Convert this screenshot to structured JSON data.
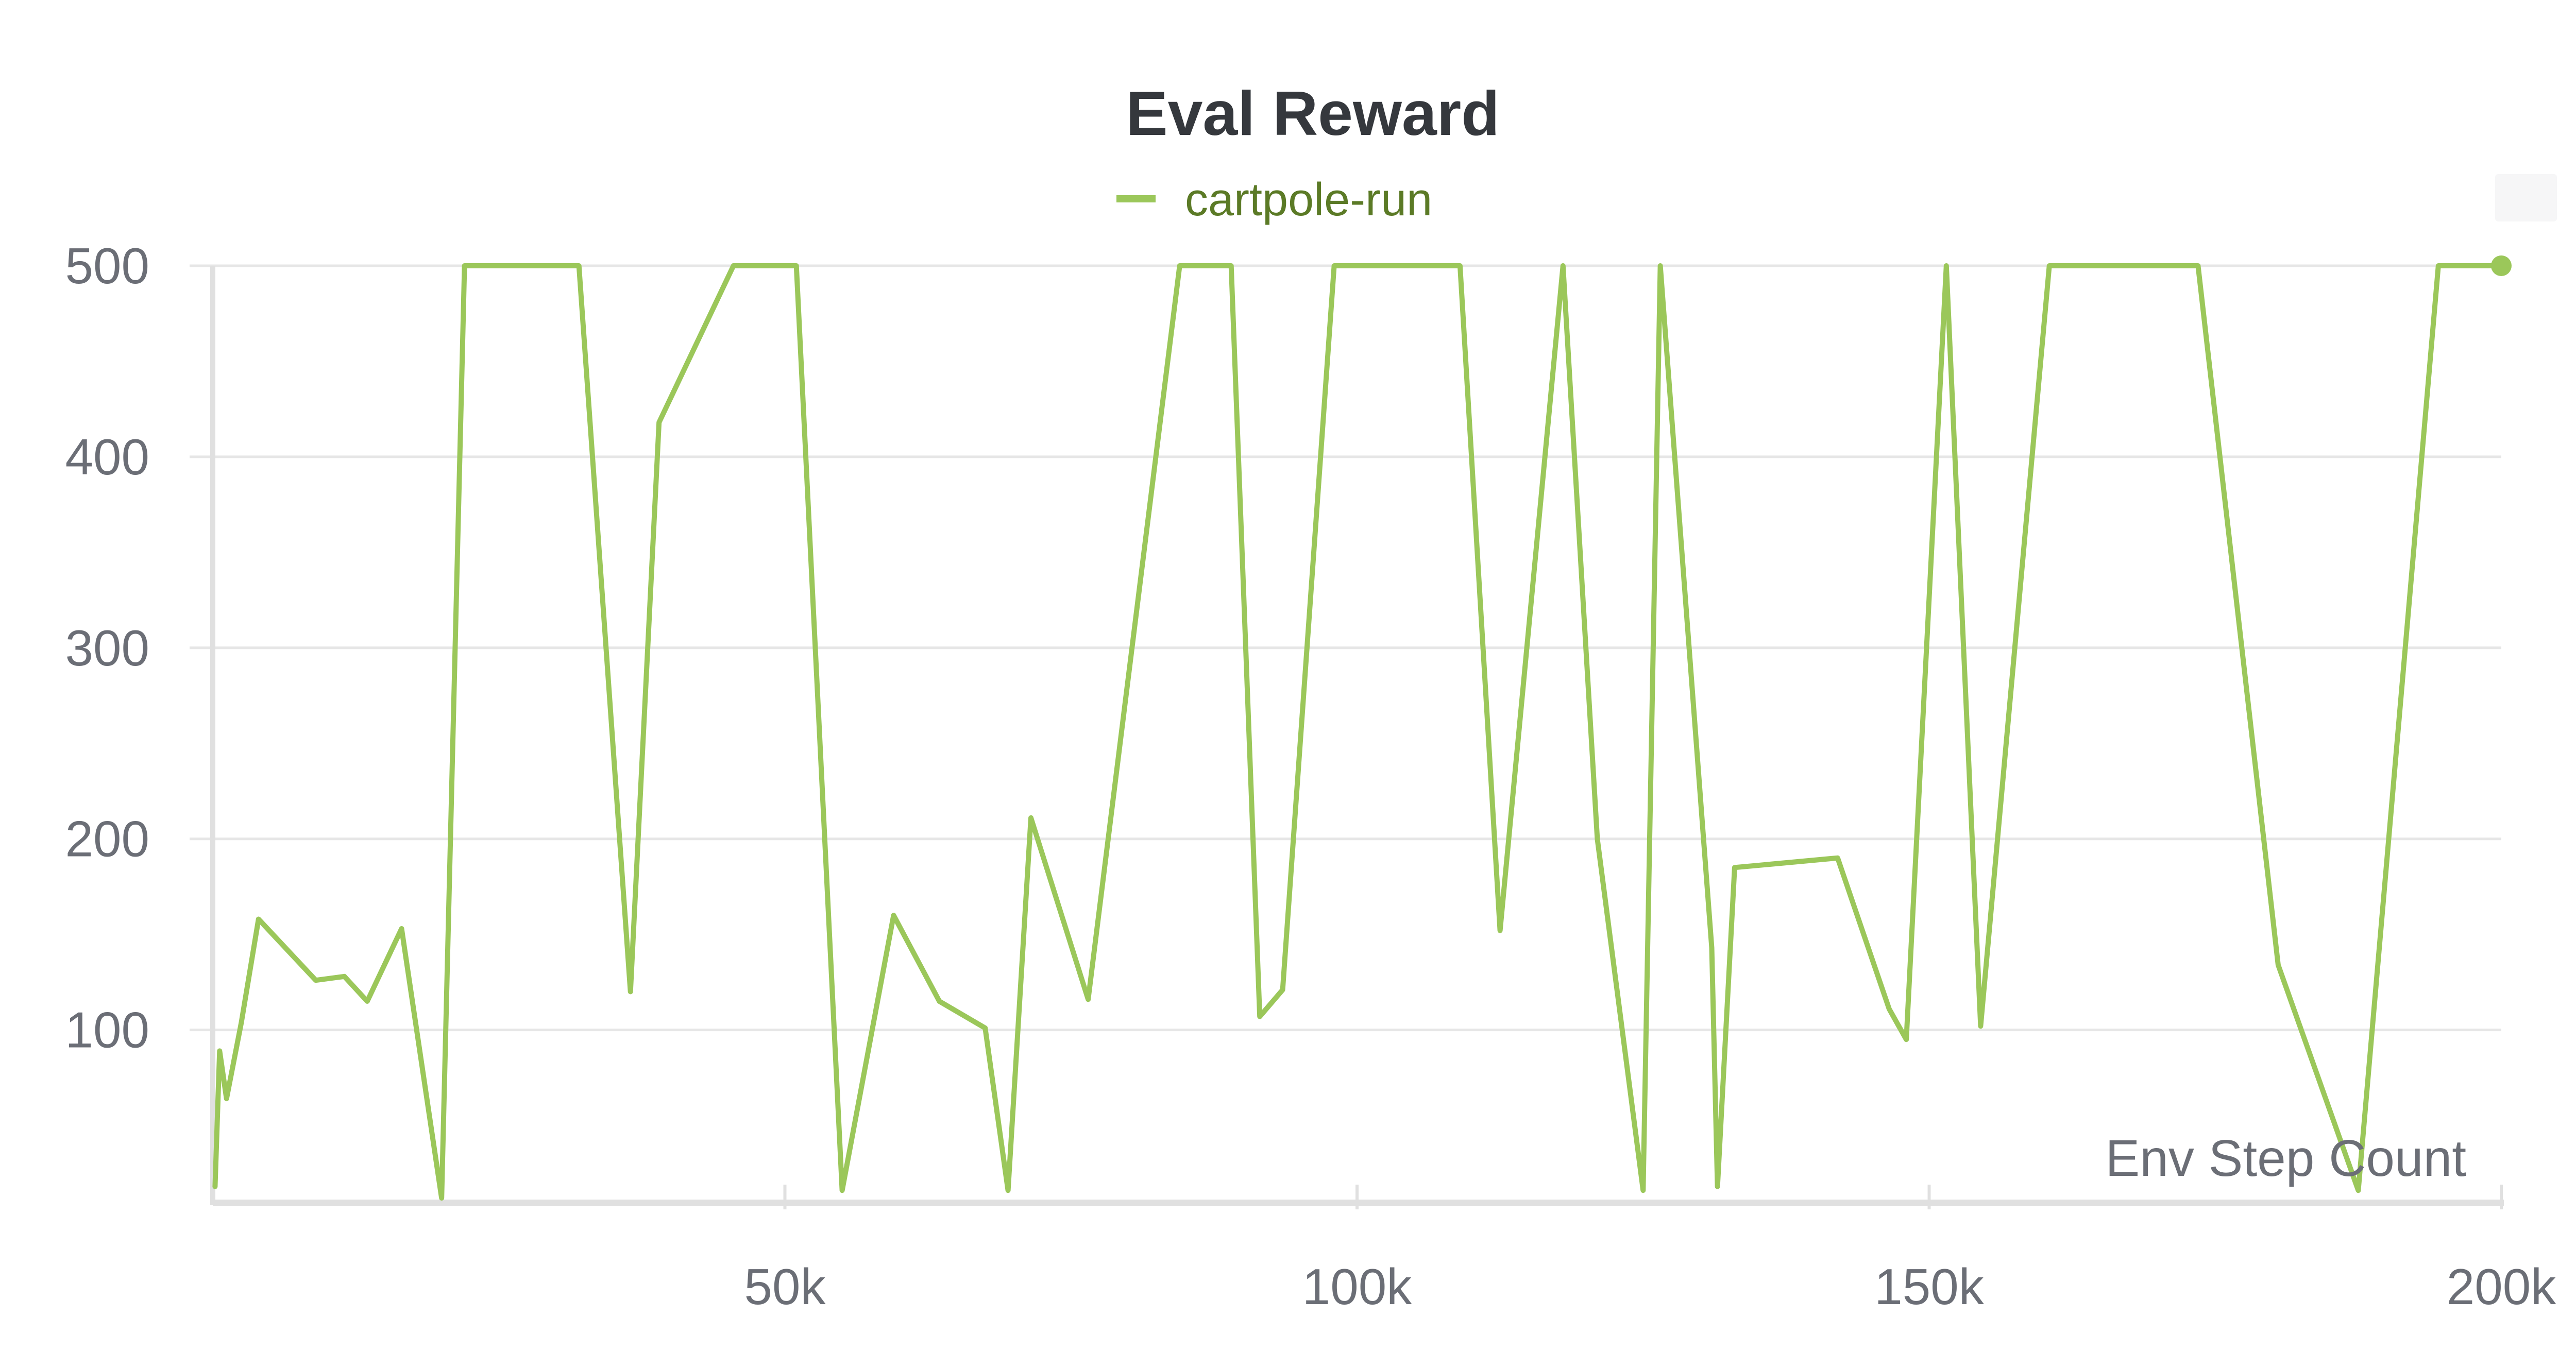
{
  "colors": {
    "series": "#9bc75a",
    "legend_text": "#5b7a26",
    "grid": "#e6e6e6",
    "axis": "#e0e0e0",
    "text": "#6b6e76",
    "title": "#35383d"
  },
  "chart_data": {
    "type": "line",
    "title": "Eval Reward",
    "xlabel": "Env Step Count",
    "ylabel": "",
    "xlim": [
      0,
      200000
    ],
    "ylim": [
      12,
      500
    ],
    "x_ticks": [
      50000,
      100000,
      150000,
      200000
    ],
    "x_tick_labels": [
      "50k",
      "100k",
      "150k",
      "200k"
    ],
    "y_ticks": [
      100,
      200,
      300,
      400,
      500
    ],
    "y_tick_labels": [
      "100",
      "200",
      "300",
      "400",
      "500"
    ],
    "grid": true,
    "legend_position": "top-center",
    "series": [
      {
        "name": "cartpole-run",
        "x": [
          200,
          600,
          1200,
          2500,
          4000,
          9000,
          11500,
          13500,
          16500,
          20000,
          22000,
          32000,
          36500,
          39000,
          45500,
          51000,
          55000,
          59500,
          63500,
          67500,
          69500,
          71500,
          76500,
          84500,
          89000,
          91500,
          93500,
          98000,
          109000,
          112500,
          118000,
          121000,
          125000,
          126500,
          131000,
          131500,
          133000,
          142000,
          146500,
          148000,
          151500,
          154500,
          160500,
          173500,
          180500,
          187500,
          194500,
          200000
        ],
        "y": [
          18,
          89,
          64,
          104,
          158,
          126,
          128,
          115,
          153,
          12,
          500,
          500,
          120,
          418,
          500,
          500,
          16,
          160,
          115,
          101,
          16,
          211,
          116,
          500,
          500,
          107,
          121,
          500,
          500,
          152,
          500,
          200,
          16,
          500,
          143,
          18,
          185,
          190,
          111,
          95,
          500,
          102,
          500,
          500,
          134,
          16,
          500,
          500
        ]
      }
    ]
  }
}
